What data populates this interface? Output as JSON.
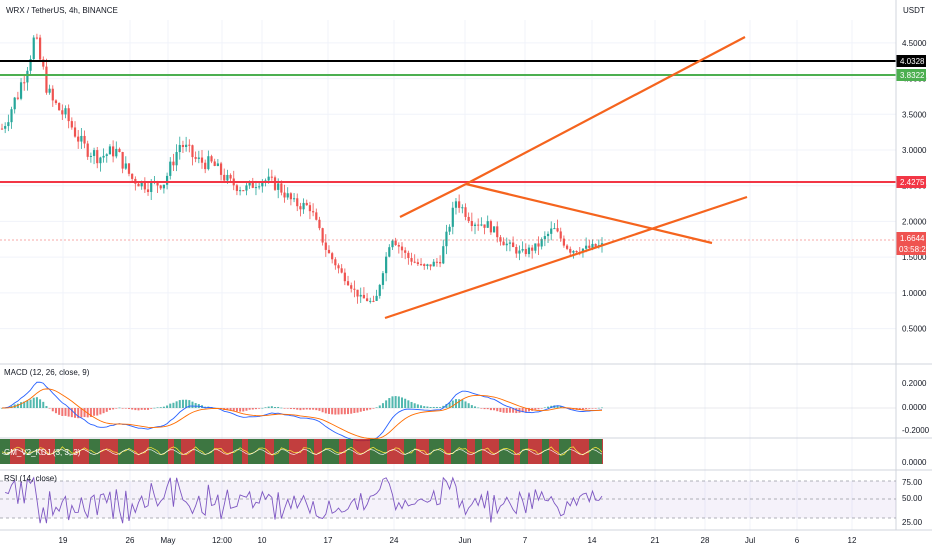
{
  "header": {
    "symbol_line": "WRX / TetherUS, 4h, BINANCE",
    "currency": "USDT"
  },
  "colors": {
    "up": "#26a69a",
    "down": "#ef5350",
    "black_line": "#000000",
    "green_line": "#4caf50",
    "red_line": "#f23645",
    "trend_lines": "#f5641e",
    "price_tag": "#ef5350",
    "macd_line": "#2962ff",
    "signal_line": "#ff6d00",
    "rsi_line": "#7e57c2",
    "kdj_green": "#1b5e20",
    "kdj_red": "#b71c1c"
  },
  "price_axis": {
    "ticks": [
      "4.5000",
      "4.0000",
      "3.5000",
      "3.0000",
      "2.5000",
      "2.0000",
      "1.5000",
      "1.0000",
      "0.5000"
    ],
    "tick_values": [
      4.5,
      4.0,
      3.5,
      3.0,
      2.5,
      2.0,
      1.5,
      1.0,
      0.5
    ]
  },
  "tags": {
    "black_level": "4.0328",
    "green_level": "3.8322",
    "red_level": "2.4275",
    "current_price": "1.6644",
    "countdown": "03:58:21"
  },
  "panels": {
    "macd_label": "MACD (12, 26, close, 9)",
    "macd_ticks": [
      "0.2000",
      "0.0000",
      "-0.2000"
    ],
    "kdj_label": "GM_V2_KDJ (3, 3, 3)",
    "kdj_tick": "0.0000",
    "rsi_label": "RSI (14, close)",
    "rsi_ticks": [
      "75.00",
      "50.00",
      "25.00"
    ]
  },
  "time_axis": {
    "labels": [
      "19",
      "26",
      "May",
      "12:00",
      "10",
      "17",
      "24",
      "Jun",
      "7",
      "14",
      "21",
      "28",
      "Jul",
      "6",
      "12"
    ]
  },
  "chart_data": {
    "type": "candlestick",
    "symbol": "WRX / TetherUS",
    "interval": "4h",
    "exchange": "BINANCE",
    "y_range": [
      0.2,
      4.82
    ],
    "horizontal_levels": [
      4.0328,
      3.8322,
      2.4275
    ],
    "current_price": 1.6644,
    "price_path": [
      3.3,
      3.8,
      4.55,
      3.7,
      3.45,
      3.05,
      2.9,
      3.0,
      2.6,
      2.5,
      2.55,
      3.1,
      2.85,
      2.8,
      2.55,
      2.45,
      2.6,
      2.5,
      2.25,
      2.2,
      1.6,
      1.25,
      0.95,
      0.85,
      1.8,
      1.5,
      1.35,
      1.45,
      2.3,
      2.0,
      1.95,
      1.7,
      1.55,
      1.65,
      1.9,
      1.6,
      1.62,
      1.66
    ],
    "macd_range": [
      -0.28,
      0.28
    ],
    "rsi_range": [
      15,
      85
    ],
    "rsi_levels": [
      75,
      50,
      25
    ]
  }
}
